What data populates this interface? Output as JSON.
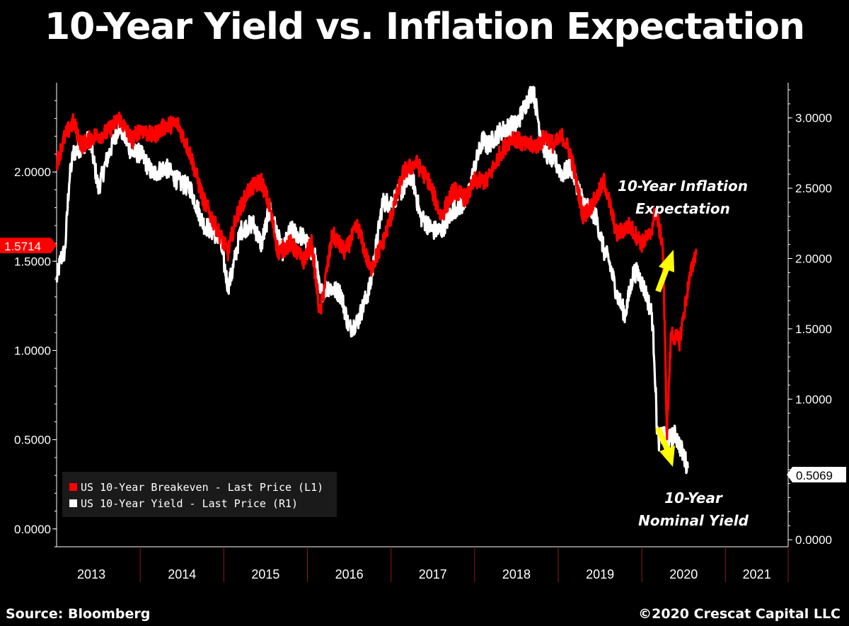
{
  "title": "10-Year Yield vs. Inflation Expectation",
  "source": "Source: Bloomberg",
  "copyright": "©2020 Crescat Capital LLC",
  "chart_data": {
    "type": "line",
    "title": "10-Year Yield vs. Inflation Expectation",
    "x_range": [
      2013.0,
      2021.75
    ],
    "x_tick_labels": [
      "2013",
      "2014",
      "2015",
      "2016",
      "2017",
      "2018",
      "2019",
      "2020",
      "2021"
    ],
    "left_axis": {
      "range": [
        -0.1,
        2.5
      ],
      "ticks": [
        0.0,
        0.5,
        1.0,
        1.5,
        2.0
      ],
      "tick_labels": [
        "0.0000",
        "0.5000",
        "1.0000",
        "1.5000",
        "2.0000"
      ]
    },
    "right_axis": {
      "range": [
        -0.05,
        3.25
      ],
      "ticks": [
        0.0,
        1.0,
        1.5,
        2.0,
        2.5,
        3.0
      ],
      "tick_labels": [
        "0.0000",
        "1.0000",
        "1.5000",
        "2.0000",
        "2.5000",
        "3.0000"
      ]
    },
    "series": [
      {
        "name": "US 10-Year Breakeven - Last Price (L1)",
        "axis": "left",
        "color": "#ff0000",
        "last_value_label": "1.5714",
        "x": [
          2013.0,
          2013.1,
          2013.2,
          2013.3,
          2013.45,
          2013.6,
          2013.75,
          2013.9,
          2014.0,
          2014.15,
          2014.3,
          2014.45,
          2014.6,
          2014.75,
          2014.9,
          2015.05,
          2015.15,
          2015.3,
          2015.45,
          2015.55,
          2015.65,
          2015.8,
          2015.95,
          2016.05,
          2016.15,
          2016.3,
          2016.45,
          2016.6,
          2016.75,
          2016.9,
          2017.0,
          2017.15,
          2017.3,
          2017.45,
          2017.6,
          2017.75,
          2017.9,
          2018.0,
          2018.15,
          2018.3,
          2018.45,
          2018.6,
          2018.75,
          2018.85,
          2018.95,
          2019.05,
          2019.15,
          2019.3,
          2019.45,
          2019.55,
          2019.7,
          2019.85,
          2020.0,
          2020.1,
          2020.15,
          2020.17,
          2020.2,
          2020.25,
          2020.3,
          2020.35,
          2020.45,
          2020.55,
          2020.65
        ],
        "values": [
          2.05,
          2.2,
          2.28,
          2.15,
          2.2,
          2.22,
          2.3,
          2.18,
          2.24,
          2.2,
          2.26,
          2.27,
          2.1,
          1.85,
          1.7,
          1.55,
          1.75,
          1.9,
          1.95,
          1.8,
          1.55,
          1.6,
          1.5,
          1.6,
          1.2,
          1.65,
          1.55,
          1.7,
          1.45,
          1.6,
          1.75,
          2.0,
          2.05,
          1.95,
          1.75,
          1.9,
          1.85,
          1.95,
          1.95,
          2.1,
          2.2,
          2.15,
          2.15,
          2.2,
          2.15,
          2.2,
          2.1,
          1.75,
          1.85,
          1.95,
          1.65,
          1.7,
          1.6,
          1.65,
          1.75,
          1.8,
          1.7,
          1.6,
          0.55,
          1.1,
          1.05,
          1.35,
          1.57
        ]
      },
      {
        "name": "US 10-Year Yield - Last Price (R1)",
        "axis": "right",
        "color": "#ffffff",
        "last_value_label": "0.5069",
        "x": [
          2013.0,
          2013.05,
          2013.1,
          2013.15,
          2013.2,
          2013.3,
          2013.4,
          2013.5,
          2013.6,
          2013.75,
          2013.9,
          2014.0,
          2014.15,
          2014.3,
          2014.45,
          2014.6,
          2014.75,
          2014.95,
          2015.05,
          2015.1,
          2015.2,
          2015.35,
          2015.45,
          2015.55,
          2015.7,
          2015.8,
          2015.95,
          2016.1,
          2016.15,
          2016.25,
          2016.4,
          2016.5,
          2016.6,
          2016.75,
          2016.9,
          2017.0,
          2017.15,
          2017.25,
          2017.35,
          2017.5,
          2017.6,
          2017.75,
          2017.9,
          2018.0,
          2018.1,
          2018.15,
          2018.3,
          2018.45,
          2018.5,
          2018.65,
          2018.7,
          2018.8,
          2018.85,
          2018.95,
          2019.05,
          2019.15,
          2019.3,
          2019.45,
          2019.55,
          2019.6,
          2019.7,
          2019.8,
          2019.9,
          2019.95,
          2020.05,
          2020.12,
          2020.15,
          2020.18,
          2020.2,
          2020.25,
          2020.3,
          2020.4,
          2020.5,
          2020.55
        ],
        "values": [
          1.85,
          2.0,
          2.05,
          2.55,
          2.75,
          2.8,
          2.85,
          2.5,
          2.7,
          2.95,
          2.75,
          2.75,
          2.6,
          2.65,
          2.55,
          2.5,
          2.25,
          2.15,
          1.8,
          1.9,
          2.2,
          2.25,
          2.1,
          2.35,
          2.05,
          2.2,
          2.15,
          2.0,
          1.75,
          1.8,
          1.75,
          1.5,
          1.55,
          1.8,
          2.4,
          2.4,
          2.5,
          2.6,
          2.3,
          2.2,
          2.2,
          2.35,
          2.4,
          2.65,
          2.85,
          2.8,
          2.9,
          2.95,
          2.95,
          3.15,
          3.2,
          2.85,
          2.75,
          2.7,
          2.6,
          2.65,
          2.4,
          2.3,
          2.05,
          2.0,
          1.75,
          1.6,
          1.9,
          1.9,
          1.75,
          1.6,
          1.3,
          0.8,
          0.7,
          0.75,
          0.7,
          0.75,
          0.6,
          0.51
        ]
      }
    ],
    "annotations": {
      "inflation_label": [
        "10-Year Inflation",
        "Expectation"
      ],
      "yield_label": [
        "10-Year",
        "Nominal Yield"
      ]
    },
    "legend_position": "bottom-left",
    "arrow_color": "#ffff00",
    "flag_red": "#ff0000",
    "flag_white": "#ffffff"
  }
}
